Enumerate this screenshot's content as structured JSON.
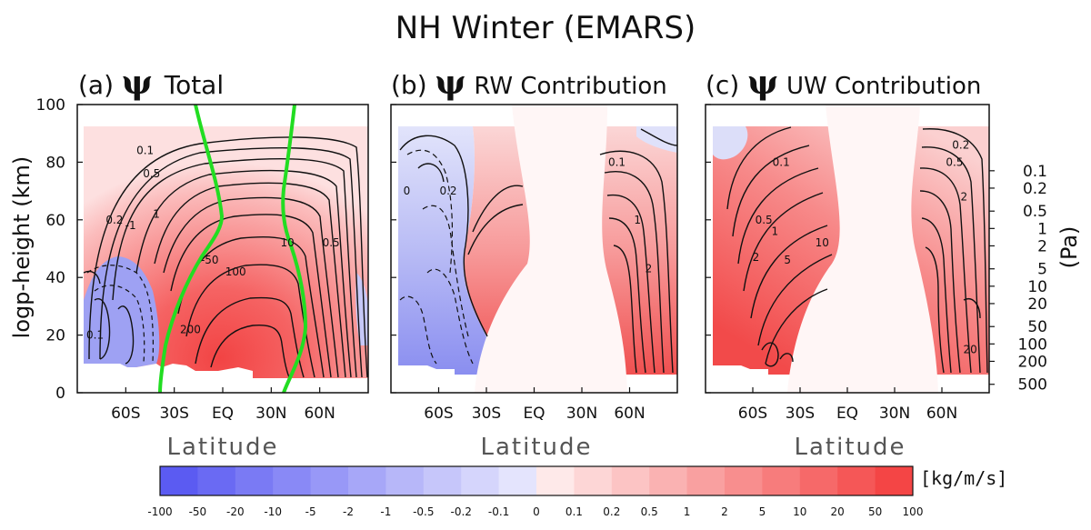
{
  "figure": {
    "title": "NH Winter (EMARS)",
    "colorbar_unit": "[kg/m/s]"
  },
  "panels": [
    {
      "letter": "(a)",
      "symbol": "ψ",
      "label": "Total"
    },
    {
      "letter": "(b)",
      "symbol": "ψ",
      "label": "RW Contribution"
    },
    {
      "letter": "(c)",
      "symbol": "ψ",
      "label": "UW Contribution"
    }
  ],
  "axes": {
    "ylabel_left": "logp-height (km)",
    "ylabel_right": "(Pa)",
    "xlabel": "Latitude",
    "height_ticks": [
      "100",
      "80",
      "60",
      "40",
      "20",
      "0"
    ],
    "height_tick_values": [
      100,
      80,
      60,
      40,
      20,
      0
    ],
    "pressure_ticks": [
      "0.1",
      "0.2",
      "0.5",
      "1",
      "2",
      "5",
      "10",
      "20",
      "50",
      "100",
      "200",
      "500"
    ],
    "pressure_tick_values": [
      0.1,
      0.2,
      0.5,
      1,
      2,
      5,
      10,
      20,
      50,
      100,
      200,
      500
    ],
    "lat_ticks": [
      "60S",
      "30S",
      "EQ",
      "30N",
      "60N"
    ],
    "lat_tick_values": [
      -60,
      -30,
      0,
      30,
      60
    ]
  },
  "colors": {
    "negative_max": "#5b5bf2",
    "neutral": "#ffffff",
    "positive_max": "#f44545",
    "hadley_edge": "#22dd22",
    "contour": "#111111"
  },
  "chart_data": {
    "type": "heatmap",
    "x": {
      "name": "Latitude",
      "range": [
        -90,
        90
      ]
    },
    "y": {
      "name": "logp-height (km)",
      "range": [
        0,
        100
      ]
    },
    "colorbar": {
      "levels": [
        "-100",
        "-50",
        "-20",
        "-10",
        "-5",
        "-2",
        "-1",
        "-0.5",
        "-0.2",
        "-0.1",
        "0",
        "0.1",
        "0.2",
        "0.5",
        "1",
        "2",
        "5",
        "10",
        "20",
        "50",
        "100"
      ],
      "bins": 20
    },
    "panel_a_contour_labels": [
      {
        "text": "0.1",
        "lat": -48,
        "z": 84
      },
      {
        "text": "0.5",
        "lat": -44,
        "z": 76
      },
      {
        "text": "0.2",
        "lat": -67,
        "z": 60
      },
      {
        "text": "-1",
        "lat": -57,
        "z": 58
      },
      {
        "text": "1",
        "lat": -41,
        "z": 62
      },
      {
        "text": "-50",
        "lat": -8,
        "z": 46
      },
      {
        "text": "100",
        "lat": 8,
        "z": 42
      },
      {
        "text": "200",
        "lat": -20,
        "z": 22
      },
      {
        "text": "10",
        "lat": 40,
        "z": 52
      },
      {
        "text": "0.5",
        "lat": 67,
        "z": 52
      },
      {
        "text": "0.1",
        "lat": -79,
        "z": 20
      }
    ],
    "panel_b_contour_labels": [
      {
        "text": "0",
        "lat": -80,
        "z": 70
      },
      {
        "text": "0.1",
        "lat": 52,
        "z": 80
      },
      {
        "text": "0.2",
        "lat": -54,
        "z": 70
      },
      {
        "text": "1",
        "lat": 65,
        "z": 60
      },
      {
        "text": "2",
        "lat": 72,
        "z": 43
      }
    ],
    "panel_c_contour_labels": [
      {
        "text": "0.2",
        "lat": 72,
        "z": 86
      },
      {
        "text": "0.1",
        "lat": -42,
        "z": 80
      },
      {
        "text": "0.5",
        "lat": 68,
        "z": 80
      },
      {
        "text": "2",
        "lat": 74,
        "z": 68
      },
      {
        "text": "0.5",
        "lat": -53,
        "z": 60
      },
      {
        "text": "1",
        "lat": -46,
        "z": 56
      },
      {
        "text": "2",
        "lat": -58,
        "z": 47
      },
      {
        "text": "5",
        "lat": -38,
        "z": 46
      },
      {
        "text": "10",
        "lat": -16,
        "z": 52
      },
      {
        "text": "20",
        "lat": 78,
        "z": 15
      }
    ]
  }
}
